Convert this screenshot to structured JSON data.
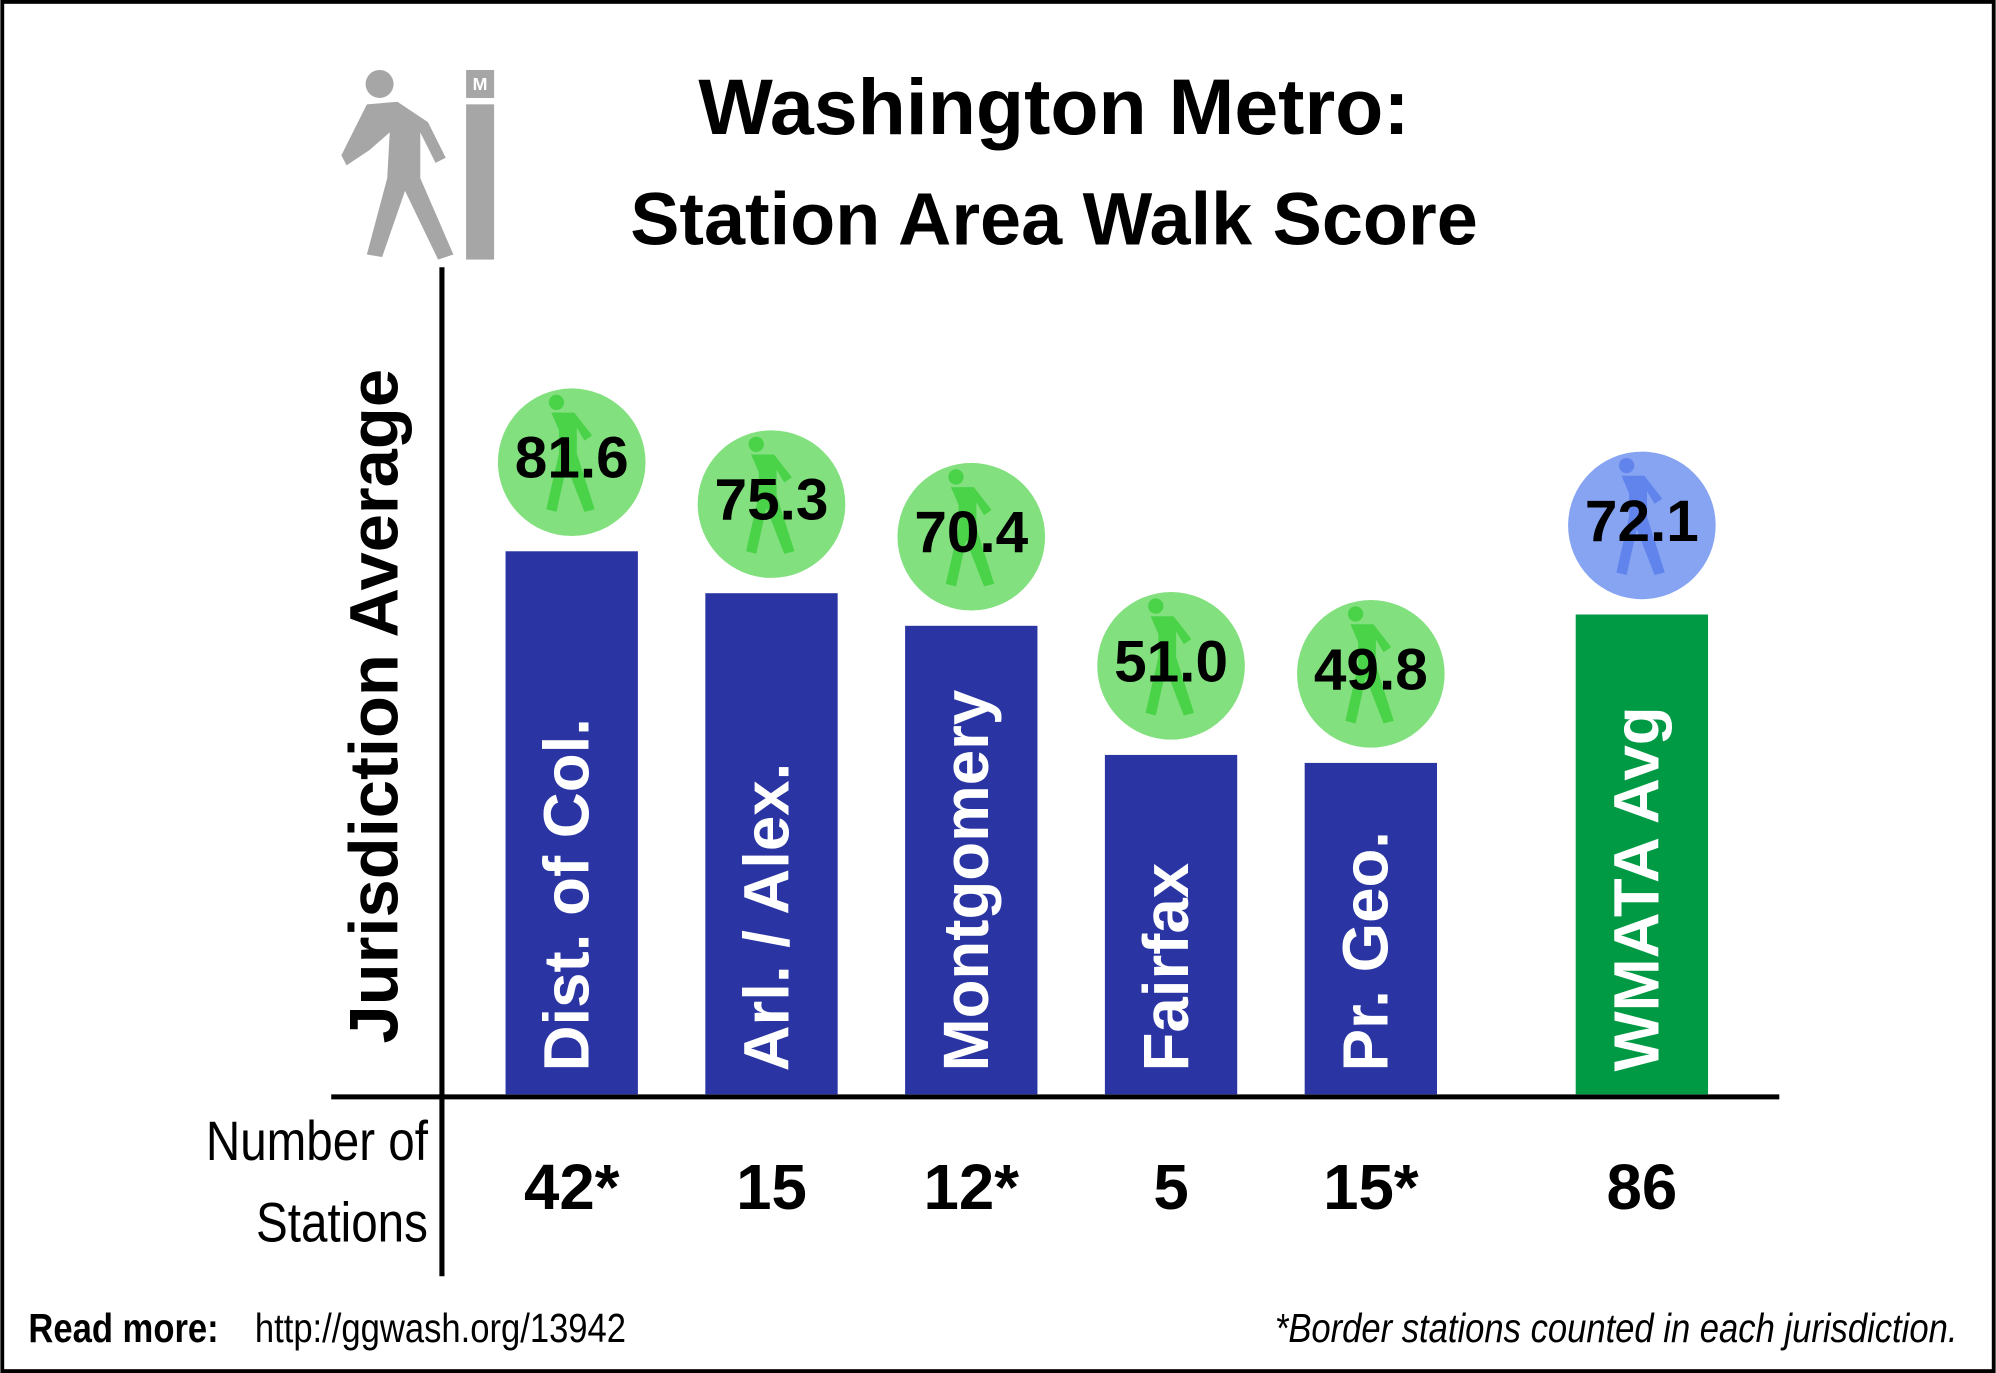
{
  "chart_data": {
    "type": "bar",
    "title": "Washington Metro:",
    "subtitle": "Station Area Walk Score",
    "y_label": "Jurisdiction Average",
    "categories": [
      "Dist. of Col.",
      "Arl. / Alex.",
      "Montgomery",
      "Fairfax",
      "Pr. Geo.",
      "WMATA Avg"
    ],
    "values": [
      81.6,
      75.3,
      70.4,
      51.0,
      49.8,
      72.1
    ],
    "value_labels": [
      "81.6",
      "75.3",
      "70.4",
      "51.0",
      "49.8",
      "72.1"
    ],
    "colors": [
      "#2a35a3",
      "#2a35a3",
      "#2a35a3",
      "#2a35a3",
      "#2a35a3",
      "#009a44"
    ],
    "badge_colors": [
      "#82e07e",
      "#82e07e",
      "#82e07e",
      "#82e07e",
      "#82e07e",
      "#86a4f2"
    ],
    "ylim": [
      0,
      100
    ],
    "stations_label": [
      "Number of",
      "Stations"
    ],
    "station_counts": [
      "42*",
      "15",
      "12*",
      "5",
      "15*",
      "86"
    ],
    "read_more_label": "Read more:",
    "read_more_url": "http://ggwash.org/13942",
    "footnote": "*Border stations counted in each jurisdiction."
  }
}
